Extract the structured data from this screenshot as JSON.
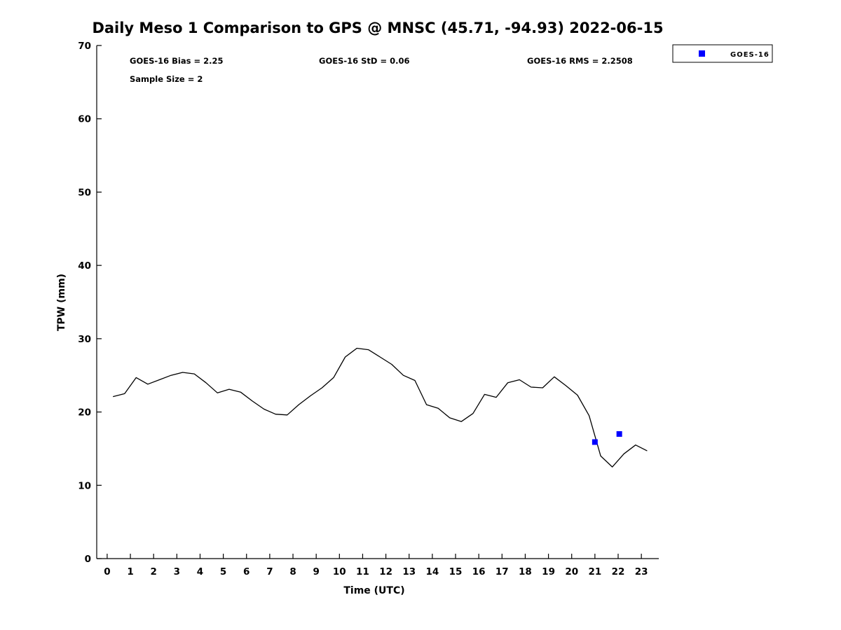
{
  "title": "Daily Meso 1 Comparison to GPS @ MNSC (45.71, -94.93) 2022-06-15",
  "annotations": {
    "bias": "GOES-16 Bias = 2.25",
    "std": "GOES-16 StD = 0.06",
    "rms": "GOES-16 RMS = 2.2508",
    "sample_size": "Sample Size = 2"
  },
  "axes": {
    "xlabel": "Time (UTC)",
    "ylabel": "TPW (mm)"
  },
  "legend": {
    "items": [
      {
        "label": "GOES-16",
        "marker": "square",
        "color": "#0000ff"
      }
    ]
  },
  "colors": {
    "line": "#000000",
    "marker": "#0000ff",
    "axis": "#000000",
    "background": "#ffffff"
  },
  "chart_data": {
    "type": "line",
    "title": "Daily Meso 1 Comparison to GPS @ MNSC (45.71, -94.93) 2022-06-15",
    "xlabel": "Time (UTC)",
    "ylabel": "TPW (mm)",
    "xlim": [
      -0.45,
      23.75
    ],
    "ylim": [
      0,
      70
    ],
    "xticks": [
      0,
      1,
      2,
      3,
      4,
      5,
      6,
      7,
      8,
      9,
      10,
      11,
      12,
      13,
      14,
      15,
      16,
      17,
      18,
      19,
      20,
      21,
      22,
      23
    ],
    "yticks": [
      0,
      10,
      20,
      30,
      40,
      50,
      60,
      70
    ],
    "grid": false,
    "legend_position": "top-right-outside",
    "series": [
      {
        "name": "GPS",
        "type": "line",
        "color": "#000000",
        "x": [
          0.25,
          0.75,
          1.25,
          1.75,
          2.25,
          2.75,
          3.25,
          3.75,
          4.25,
          4.75,
          5.25,
          5.75,
          6.25,
          6.75,
          7.25,
          7.75,
          8.25,
          8.75,
          9.25,
          9.75,
          10.25,
          10.75,
          11.25,
          11.75,
          12.25,
          12.75,
          13.25,
          13.75,
          14.25,
          14.75,
          15.25,
          15.75,
          16.25,
          16.75,
          17.25,
          17.75,
          18.25,
          18.75,
          19.25,
          19.75,
          20.25,
          20.75,
          21.25,
          21.75,
          22.25,
          22.75,
          23.25
        ],
        "y": [
          22.1,
          22.5,
          24.7,
          23.8,
          24.4,
          25.0,
          25.4,
          25.2,
          24.0,
          22.6,
          23.1,
          22.7,
          21.5,
          20.4,
          19.7,
          19.6,
          21.0,
          22.2,
          23.3,
          24.7,
          27.5,
          28.7,
          28.5,
          27.5,
          26.5,
          25.0,
          24.3,
          21.0,
          20.5,
          19.2,
          18.7,
          19.8,
          22.4,
          22.0,
          24.0,
          24.4,
          23.4,
          23.3,
          24.8,
          23.6,
          22.3,
          19.5,
          14.0,
          12.5,
          14.3,
          15.5,
          14.7
        ]
      },
      {
        "name": "GOES-16",
        "type": "scatter",
        "marker": "square",
        "color": "#0000ff",
        "x": [
          21.0,
          22.05
        ],
        "y": [
          15.9,
          17.0
        ]
      }
    ]
  }
}
